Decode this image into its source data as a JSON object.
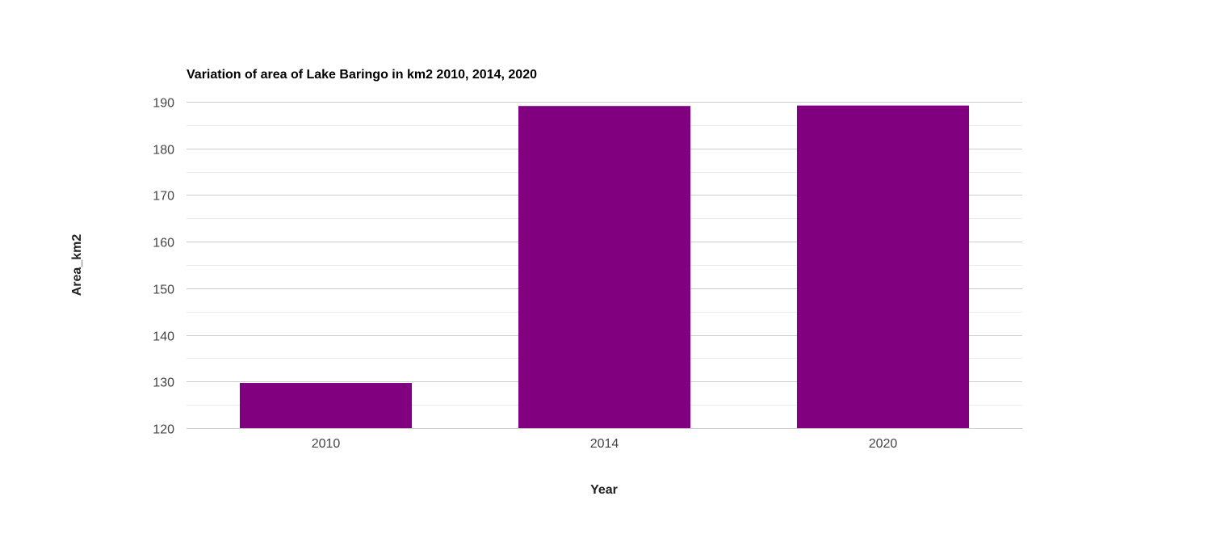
{
  "chart_data": {
    "type": "bar",
    "title": "Variation of area of Lake Baringo in km2 2010, 2014, 2020",
    "xlabel": "Year",
    "ylabel": "Area_km2",
    "categories": [
      "2010",
      "2014",
      "2020"
    ],
    "series": [
      {
        "values": [
          129.7,
          189.1,
          189.2
        ]
      }
    ],
    "ylim": [
      120,
      190
    ],
    "yticks": [
      120,
      130,
      140,
      150,
      160,
      170,
      180,
      190
    ],
    "grid": true,
    "legend": "none",
    "colors": {
      "bar": "#800080",
      "major_grid": "#cccccc",
      "minor_grid": "#ebebeb",
      "tick_text": "#444444"
    }
  }
}
